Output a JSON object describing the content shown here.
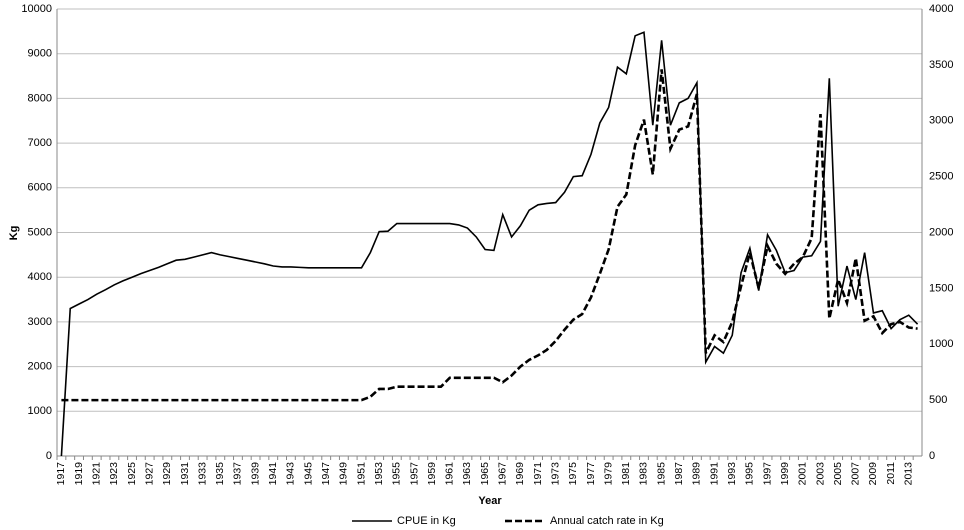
{
  "chart_data": {
    "type": "line",
    "x_label": "Year",
    "y_label": "Kg",
    "categories": [
      "1917",
      null,
      "1919",
      null,
      "1921",
      null,
      "1923",
      null,
      "1925",
      null,
      "1927",
      null,
      "1929",
      null,
      "1931",
      null,
      "1933",
      null,
      "1935",
      null,
      "1937",
      null,
      "1939",
      null,
      "1941",
      null,
      "1943",
      null,
      "1945",
      null,
      "1947",
      null,
      "1949",
      null,
      "1951",
      null,
      "1953",
      null,
      "1955",
      null,
      "1957",
      null,
      "1959",
      null,
      "1961",
      null,
      "1963",
      null,
      "1965",
      null,
      "1967",
      null,
      "1969",
      null,
      "1971",
      null,
      "1973",
      null,
      "1975",
      null,
      "1977",
      null,
      "1979",
      null,
      "1981",
      null,
      "1983",
      null,
      "1985",
      null,
      "1987",
      null,
      "1989",
      null,
      "1991",
      null,
      "1993",
      null,
      "1995",
      null,
      "1997",
      null,
      "1999",
      null,
      "2001",
      null,
      "2003",
      null,
      "2005",
      null,
      "2007",
      null,
      "2009",
      null,
      "2011",
      null,
      "2013",
      null
    ],
    "series": [
      {
        "name": "CPUE in Kg",
        "color": "#000000",
        "dash": "solid",
        "axis": "y",
        "values": [
          0,
          3300,
          3400,
          3500,
          3620,
          3720,
          3830,
          3920,
          4000,
          4080,
          4150,
          4220,
          4300,
          4380,
          4400,
          4450,
          4500,
          4550,
          4500,
          4460,
          4420,
          4380,
          4340,
          4300,
          4250,
          4230,
          4230,
          4220,
          4210,
          4210,
          4210,
          4210,
          4210,
          4210,
          4210,
          4550,
          5020,
          5030,
          5200,
          5200,
          5200,
          5200,
          5200,
          5200,
          5200,
          5170,
          5100,
          4900,
          4620,
          4600,
          5400,
          4900,
          5150,
          5500,
          5620,
          5650,
          5670,
          5900,
          6250,
          6270,
          6750,
          7450,
          7800,
          8700,
          8550,
          9400,
          9480,
          7400,
          9300,
          7400,
          7900,
          8000,
          8350,
          2100,
          2450,
          2300,
          2700,
          4100,
          4650,
          3700,
          4950,
          4600,
          4100,
          4150,
          4450,
          4480,
          4800,
          8450,
          3350,
          4250,
          3500,
          4550,
          3200,
          3250,
          2850,
          3050,
          3150,
          2950
        ]
      },
      {
        "name": "Annual catch rate in Kg",
        "color": "#000000",
        "dash": "dashed",
        "axis": "y2",
        "values": [
          500,
          500,
          500,
          500,
          500,
          500,
          500,
          500,
          500,
          500,
          500,
          500,
          500,
          500,
          500,
          500,
          500,
          500,
          500,
          500,
          500,
          500,
          500,
          500,
          500,
          500,
          500,
          500,
          500,
          500,
          500,
          500,
          500,
          500,
          500,
          530,
          600,
          600,
          620,
          620,
          620,
          620,
          620,
          620,
          700,
          700,
          700,
          700,
          700,
          700,
          660,
          720,
          800,
          860,
          900,
          950,
          1030,
          1130,
          1220,
          1270,
          1420,
          1630,
          1850,
          2230,
          2340,
          2780,
          3010,
          2520,
          3460,
          2750,
          2920,
          2950,
          3240,
          920,
          1080,
          1020,
          1200,
          1520,
          1820,
          1500,
          1880,
          1720,
          1630,
          1720,
          1780,
          1950,
          3060,
          1230,
          1580,
          1370,
          1770,
          1210,
          1250,
          1100,
          1180,
          1200,
          1150,
          1140
        ]
      }
    ],
    "ylim": [
      0,
      10000
    ],
    "yticks": [
      0,
      1000,
      2000,
      3000,
      4000,
      5000,
      6000,
      7000,
      8000,
      9000,
      10000
    ],
    "y2lim": [
      0,
      4000
    ],
    "y2ticks": [
      0,
      500,
      1000,
      1500,
      2000,
      2500,
      3000,
      3500,
      4000
    ],
    "grid": true,
    "legend": "bottom"
  }
}
